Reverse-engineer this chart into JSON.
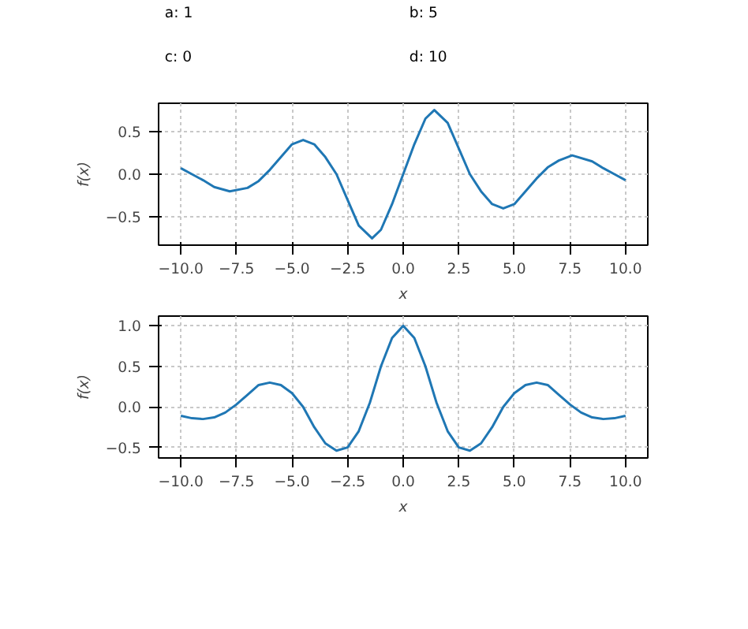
{
  "chart_data": [
    {
      "type": "other",
      "annotations": [
        "a: 1",
        "b: 5",
        "c: 0",
        "d: 10"
      ]
    },
    {
      "type": "line",
      "xlabel": "x",
      "ylabel": "f(x)",
      "xlim": [
        -11,
        11
      ],
      "ylim": [
        -0.83,
        0.83
      ],
      "xticks": [
        {
          "value": -10,
          "label": "−10.0"
        },
        {
          "value": -7.5,
          "label": "−7.5"
        },
        {
          "value": -5,
          "label": "−5.0"
        },
        {
          "value": -2.5,
          "label": "−2.5"
        },
        {
          "value": 0,
          "label": "0.0"
        },
        {
          "value": 2.5,
          "label": "2.5"
        },
        {
          "value": 5,
          "label": "5.0"
        },
        {
          "value": 7.5,
          "label": "7.5"
        },
        {
          "value": 10,
          "label": "10.0"
        }
      ],
      "yticks": [
        {
          "value": -0.5,
          "label": "−0.5"
        },
        {
          "value": 0,
          "label": "0.0"
        },
        0.5
      ],
      "grid": true,
      "line_style": "solid",
      "series": [
        {
          "color": "#1f77b4",
          "x": [
            -10,
            -9.5,
            -9,
            -8.5,
            -7.8,
            -7,
            -6.5,
            -6,
            -5.5,
            -5,
            -4.5,
            -4,
            -3.5,
            -3,
            -2.5,
            -2,
            -1.4,
            -1,
            -0.5,
            0,
            0.5,
            1,
            1.4,
            2,
            2.5,
            3,
            3.5,
            4,
            4.5,
            5,
            5.5,
            6,
            6.5,
            7,
            7.6,
            8.5,
            9,
            9.5,
            10
          ],
          "values": [
            0.07,
            0,
            -0.07,
            -0.15,
            -0.2,
            -0.16,
            -0.08,
            0.05,
            0.2,
            0.35,
            0.4,
            0.35,
            0.2,
            0.0,
            -0.3,
            -0.6,
            -0.75,
            -0.65,
            -0.35,
            0.0,
            0.35,
            0.65,
            0.75,
            0.6,
            0.3,
            0.0,
            -0.2,
            -0.35,
            -0.4,
            -0.35,
            -0.2,
            -0.05,
            0.08,
            0.16,
            0.22,
            0.15,
            0.07,
            0,
            -0.07
          ]
        }
      ]
    },
    {
      "type": "line",
      "xlabel": "x",
      "ylabel": "f(x)",
      "xlim": [
        -11,
        11
      ],
      "ylim": [
        -0.63,
        1.12
      ],
      "xticks": [
        {
          "value": -10,
          "label": "−10.0"
        },
        {
          "value": -7.5,
          "label": "−7.5"
        },
        {
          "value": -5,
          "label": "−5.0"
        },
        {
          "value": -2.5,
          "label": "−2.5"
        },
        {
          "value": 0,
          "label": "0.0"
        },
        {
          "value": 2.5,
          "label": "2.5"
        },
        {
          "value": 5,
          "label": "5.0"
        },
        {
          "value": 7.5,
          "label": "7.5"
        },
        {
          "value": 10,
          "label": "10.0"
        }
      ],
      "yticks": [
        {
          "value": -0.5,
          "label": "−0.5"
        },
        {
          "value": 0,
          "label": "0.0"
        },
        0.5,
        {
          "value": 1,
          "label": "1.0"
        }
      ],
      "grid": true,
      "line_style": "solid",
      "series": [
        {
          "color": "#1f77b4",
          "x": [
            -10,
            -9.5,
            -9,
            -8.5,
            -8,
            -7.5,
            -7,
            -6.5,
            -6,
            -5.5,
            -5,
            -4.5,
            -4,
            -3.5,
            -3,
            -2.5,
            -2,
            -1.5,
            -1,
            -0.5,
            0,
            0.5,
            1,
            1.5,
            2,
            2.5,
            3,
            3.5,
            4,
            4.5,
            5,
            5.5,
            6,
            6.5,
            7,
            7.5,
            8,
            8.5,
            9,
            9.5,
            10
          ],
          "values": [
            -0.11,
            -0.14,
            -0.15,
            -0.13,
            -0.07,
            0.03,
            0.15,
            0.27,
            0.3,
            0.27,
            0.17,
            0,
            -0.25,
            -0.45,
            -0.54,
            -0.5,
            -0.3,
            0.05,
            0.5,
            0.85,
            1.0,
            0.85,
            0.5,
            0.05,
            -0.3,
            -0.5,
            -0.54,
            -0.45,
            -0.25,
            0,
            0.17,
            0.27,
            0.3,
            0.27,
            0.15,
            0.03,
            -0.07,
            -0.13,
            -0.15,
            -0.14,
            -0.11
          ]
        }
      ]
    }
  ]
}
